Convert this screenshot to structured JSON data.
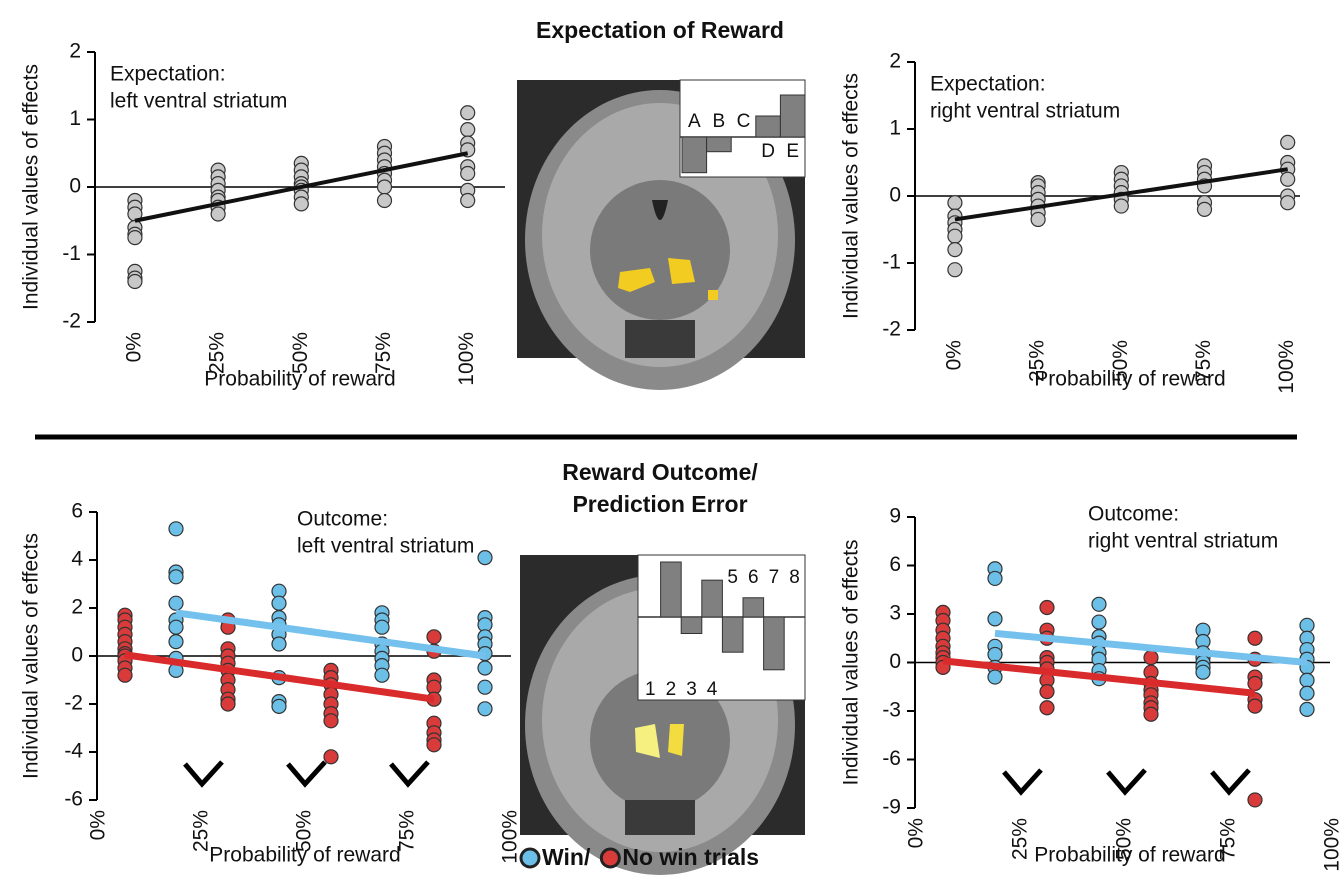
{
  "headings": [
    "Expectation of Reward",
    "Reward Outcome/",
    "Prediction Error"
  ],
  "chart_data": [
    {
      "type": "scatter",
      "annotation": [
        "Expectation:",
        "left ventral striatum"
      ],
      "xlabel": "Probability of reward",
      "ylabel": "Individual values of effects",
      "xlim": [
        -12,
        104
      ],
      "ylim": [
        -2,
        2
      ],
      "yticks": [
        -2,
        -1,
        0,
        1,
        2
      ],
      "xticks": [
        {
          "value": 0,
          "label": "0%"
        },
        {
          "value": 25,
          "label": "25%"
        },
        {
          "value": 50,
          "label": "50%"
        },
        {
          "value": 75,
          "label": "75%"
        },
        {
          "value": 100,
          "label": "100%"
        }
      ],
      "series": [
        {
          "color": "#c8c8c8",
          "x": [
            0,
            0,
            0,
            0,
            0,
            0,
            0,
            0,
            0,
            25,
            25,
            25,
            25,
            25,
            25,
            25,
            25,
            50,
            50,
            50,
            50,
            50,
            50,
            50,
            50,
            75,
            75,
            75,
            75,
            75,
            75,
            75,
            75,
            100,
            100,
            100,
            100,
            100,
            100,
            100,
            100
          ],
          "values": [
            -0.2,
            -0.3,
            -0.4,
            -0.6,
            -0.7,
            -0.75,
            -1.25,
            -1.35,
            -1.4,
            0.25,
            0.15,
            0.05,
            -0.05,
            -0.15,
            -0.2,
            -0.3,
            -0.4,
            0.35,
            0.25,
            0.15,
            0.05,
            0,
            -0.05,
            -0.15,
            -0.25,
            0.6,
            0.5,
            0.4,
            0.3,
            0.2,
            0.1,
            0,
            -0.2,
            1.1,
            0.85,
            0.65,
            0.55,
            0.3,
            0.2,
            -0.05,
            -0.2
          ]
        }
      ],
      "fits": [
        {
          "color": "#111111",
          "x": [
            0,
            100
          ],
          "values": [
            -0.5,
            0.5
          ]
        }
      ]
    },
    {
      "type": "scatter",
      "annotation": [
        "Expectation:",
        "right ventral striatum"
      ],
      "xlabel": "Probability of reward",
      "ylabel": "Individual values of effects",
      "xlim": [
        -12,
        104
      ],
      "ylim": [
        -2,
        2
      ],
      "yticks": [
        -2,
        -1,
        0,
        1,
        2
      ],
      "xticks": [
        {
          "value": 0,
          "label": "0%"
        },
        {
          "value": 25,
          "label": "25%"
        },
        {
          "value": 50,
          "label": "50%"
        },
        {
          "value": 75,
          "label": "75%"
        },
        {
          "value": 100,
          "label": "100%"
        }
      ],
      "series": [
        {
          "color": "#c8c8c8",
          "x": [
            0,
            0,
            0,
            0,
            0,
            0,
            0,
            25,
            25,
            25,
            25,
            25,
            25,
            25,
            50,
            50,
            50,
            50,
            50,
            50,
            75,
            75,
            75,
            75,
            75,
            75,
            100,
            100,
            100,
            100,
            100,
            100
          ],
          "values": [
            -0.1,
            -0.3,
            -0.4,
            -0.5,
            -0.6,
            -0.8,
            -1.1,
            0.2,
            0.15,
            0.05,
            -0.05,
            -0.15,
            -0.25,
            -0.35,
            0.35,
            0.25,
            0.15,
            0.05,
            -0.05,
            -0.15,
            0.45,
            0.35,
            0.25,
            0.15,
            -0.1,
            -0.2,
            0.8,
            0.5,
            0.4,
            0.25,
            0,
            -0.1
          ]
        }
      ],
      "fits": [
        {
          "color": "#111111",
          "x": [
            0,
            100
          ],
          "values": [
            -0.35,
            0.4
          ]
        }
      ]
    },
    {
      "type": "scatter",
      "annotation": [
        "Outcome:",
        "left ventral striatum"
      ],
      "xlabel": "Probability of reward",
      "ylabel": "Individual values of effects",
      "xlim": [
        0,
        100
      ],
      "ylim": [
        -6,
        6
      ],
      "yticks": [
        -6,
        -4,
        -2,
        0,
        2,
        4,
        6
      ],
      "xticks": [
        {
          "value": 0,
          "label": "0%"
        },
        {
          "value": 25,
          "label": "25%"
        },
        {
          "value": 50,
          "label": "50%"
        },
        {
          "value": 75,
          "label": "75%"
        },
        {
          "value": 100,
          "label": "100%"
        }
      ],
      "series": [
        {
          "name": "Win/",
          "color": "#6cc0e8",
          "x": [
            25,
            25,
            25,
            25,
            25,
            25,
            25,
            25,
            25,
            50,
            50,
            50,
            50,
            50,
            50,
            50,
            50,
            50,
            75,
            75,
            75,
            75,
            75,
            75,
            75,
            75,
            100,
            100,
            100,
            100,
            100,
            100,
            100,
            100,
            100
          ],
          "values": [
            5.3,
            3.5,
            3.3,
            2.2,
            1.5,
            1.2,
            0.6,
            -0.1,
            -0.6,
            2.7,
            2.2,
            1.6,
            1.3,
            0.9,
            0.5,
            -0.9,
            -1.9,
            -2.1,
            1.8,
            1.5,
            1.2,
            0.5,
            0.2,
            -0.1,
            -0.4,
            -0.8,
            4.1,
            1.6,
            1.3,
            0.8,
            0.5,
            0.1,
            -0.5,
            -1.3,
            -2.2
          ]
        },
        {
          "name": "No win trials",
          "color": "#d93a3a",
          "x": [
            0,
            0,
            0,
            0,
            0,
            0,
            0,
            0,
            0,
            0,
            0,
            25,
            25,
            25,
            25,
            25,
            25,
            25,
            25,
            25,
            25,
            50,
            50,
            50,
            50,
            50,
            50,
            50,
            50,
            75,
            75,
            75,
            75,
            75,
            75,
            75,
            75,
            75
          ],
          "values": [
            1.7,
            1.5,
            1.2,
            0.9,
            0.6,
            0.3,
            0.1,
            0,
            -0.2,
            -0.5,
            -0.8,
            1.5,
            1.2,
            0.3,
            0,
            -0.3,
            -0.6,
            -1,
            -1.4,
            -1.8,
            -2,
            -0.6,
            -0.9,
            -1.2,
            -1.6,
            -2,
            -2.4,
            -2.7,
            -4.2,
            0.8,
            0.2,
            -1,
            -1.3,
            -1.8,
            -2.8,
            -3.2,
            -3.5,
            -3.7
          ]
        }
      ],
      "fits": [
        {
          "color": "#74c1ee",
          "x": [
            25,
            100
          ],
          "values": [
            1.8,
            0
          ]
        },
        {
          "color": "#d92b2b",
          "x": [
            0,
            75
          ],
          "values": [
            0.05,
            -1.8
          ]
        }
      ]
    },
    {
      "type": "scatter",
      "annotation": [
        "Outcome:",
        "right ventral striatum"
      ],
      "xlabel": "Probability of reward",
      "ylabel": "Individual values of effects",
      "xlim": [
        0,
        100
      ],
      "ylim": [
        -9,
        9
      ],
      "yticks": [
        -9,
        -6,
        -3,
        0,
        3,
        6,
        9
      ],
      "xticks": [
        {
          "value": 0,
          "label": "0%"
        },
        {
          "value": 25,
          "label": "25%"
        },
        {
          "value": 50,
          "label": "50%"
        },
        {
          "value": 75,
          "label": "75%"
        },
        {
          "value": 100,
          "label": "100%"
        }
      ],
      "series": [
        {
          "color": "#6cc0e8",
          "x": [
            25,
            25,
            25,
            25,
            25,
            25,
            25,
            50,
            50,
            50,
            50,
            50,
            50,
            50,
            50,
            75,
            75,
            75,
            75,
            75,
            75,
            75,
            100,
            100,
            100,
            100,
            100,
            100,
            100,
            100
          ],
          "values": [
            5.8,
            5.2,
            2.7,
            1,
            0.5,
            -0.3,
            -0.9,
            3.6,
            2.5,
            1.6,
            1.2,
            0.6,
            0.2,
            -0.5,
            -1,
            2,
            1.3,
            0.6,
            0.3,
            0,
            -0.3,
            -0.6,
            2.3,
            1.5,
            0.8,
            0.2,
            -0.3,
            -1.1,
            -1.9,
            -2.9
          ]
        },
        {
          "color": "#d93a3a",
          "x": [
            0,
            0,
            0,
            0,
            0,
            0,
            0,
            0,
            0,
            25,
            25,
            25,
            25,
            25,
            25,
            25,
            25,
            25,
            50,
            50,
            50,
            50,
            50,
            50,
            50,
            50,
            75,
            75,
            75,
            75,
            75,
            75,
            75
          ],
          "values": [
            3.1,
            2.6,
            2,
            1.5,
            1,
            0.6,
            0.3,
            0,
            -0.3,
            3.4,
            2,
            1.5,
            0.3,
            0,
            -0.4,
            -1.1,
            -1.8,
            -2.8,
            0.3,
            -0.6,
            -1.3,
            -1.7,
            -2,
            -2.5,
            -2.8,
            -3.2,
            1.5,
            0.2,
            -0.9,
            -1.3,
            -2.3,
            -2.7,
            -8.5
          ]
        }
      ],
      "fits": [
        {
          "color": "#74c1ee",
          "x": [
            25,
            100
          ],
          "values": [
            1.8,
            0
          ]
        },
        {
          "color": "#d92b2b",
          "x": [
            0,
            75
          ],
          "values": [
            0.1,
            -1.9
          ]
        }
      ]
    },
    {
      "type": "bar",
      "categories": [
        "A",
        "B",
        "C",
        "D",
        "E"
      ],
      "values": [
        -0.85,
        -0.35,
        0,
        0.5,
        1
      ],
      "color": "#808080"
    },
    {
      "type": "bar",
      "categories": [
        "1",
        "2",
        "3",
        "4",
        "5",
        "6",
        "7",
        "8"
      ],
      "values": [
        0,
        1,
        -0.3,
        0.67,
        -0.64,
        0.35,
        -0.96,
        0
      ],
      "color": "#808080"
    }
  ]
}
